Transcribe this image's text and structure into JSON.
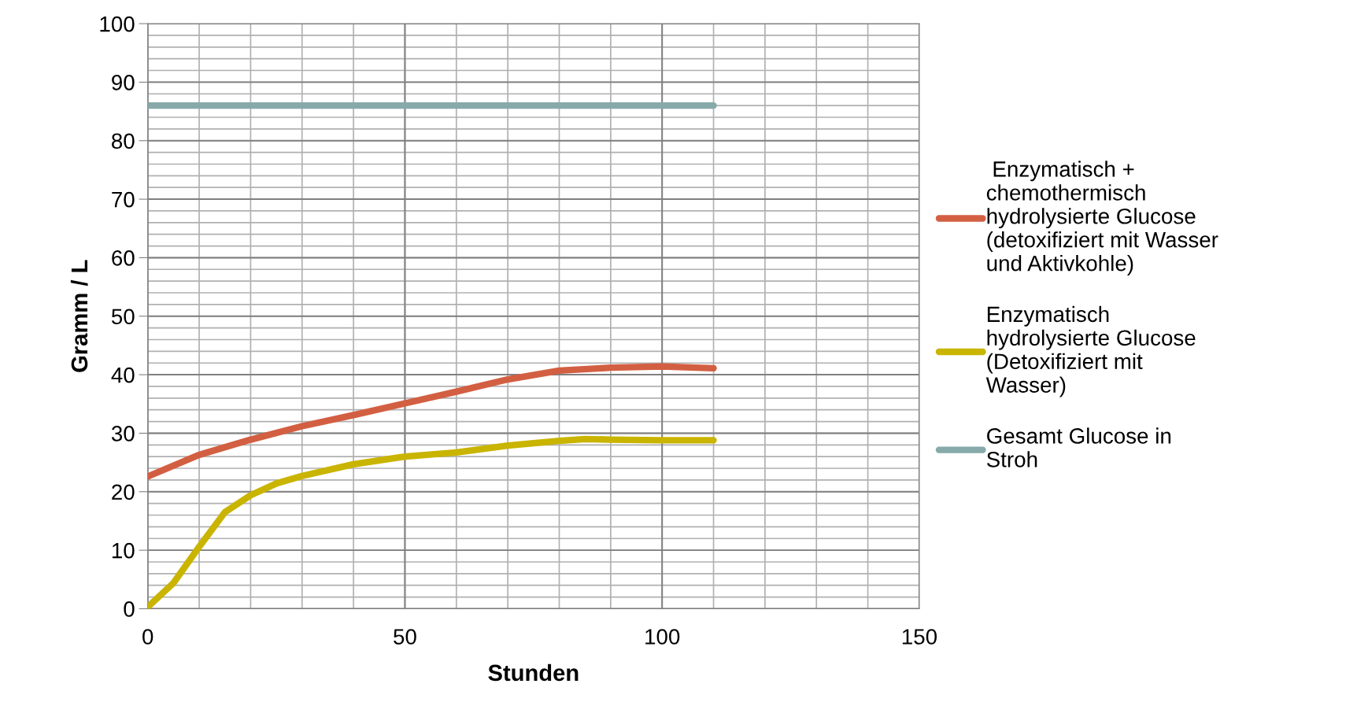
{
  "chart_data": {
    "type": "line",
    "xlabel": "Stunden",
    "ylabel": "Gramm / L",
    "xlim": [
      0,
      150
    ],
    "xticks": [
      0,
      50,
      100,
      150
    ],
    "ylim": [
      0,
      100
    ],
    "yticks": [
      0,
      10,
      20,
      30,
      40,
      50,
      60,
      70,
      80,
      90,
      100
    ],
    "grid": true,
    "legend": "right",
    "marker": "none",
    "line_style": "solid",
    "series": [
      {
        "name": " Enzymatisch +\nchemothermisch\nhydrolysierte Glucose\n(detoxifiziert mit Wasser\nund Aktivkohle)",
        "color": "#d35f42",
        "x": [
          0,
          10,
          20,
          30,
          40,
          50,
          60,
          70,
          80,
          90,
          100,
          110
        ],
        "values": [
          22.6,
          26.3,
          28.9,
          31.2,
          33.1,
          35.1,
          37.1,
          39.2,
          40.7,
          41.2,
          41.4,
          41.1
        ]
      },
      {
        "name": "Enzymatisch\nhydrolysierte Glucose\n(Detoxifiziert mit\nWasser)",
        "color": "#c9b400",
        "x": [
          0,
          5,
          10,
          15,
          20,
          25,
          30,
          40,
          50,
          60,
          70,
          80,
          85,
          90,
          100,
          110
        ],
        "values": [
          0.3,
          4.4,
          10.6,
          16.5,
          19.4,
          21.4,
          22.7,
          24.7,
          26.0,
          26.7,
          27.9,
          28.7,
          29.0,
          28.9,
          28.8,
          28.8
        ]
      },
      {
        "name": "Gesamt Glucose in\nStroh",
        "color": "#87a9a9",
        "x": [
          0,
          110
        ],
        "values": [
          86,
          86
        ]
      }
    ]
  }
}
